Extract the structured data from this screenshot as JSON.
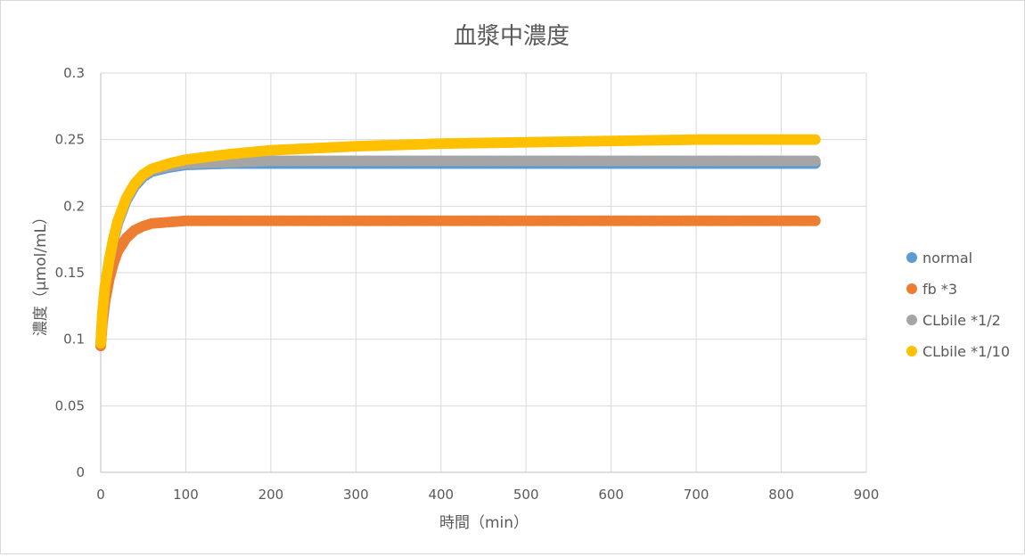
{
  "chart_data": {
    "type": "scatter",
    "title": "血漿中濃度",
    "xlabel": "時間（min）",
    "ylabel": "濃度（μmol/mL）",
    "xlim": [
      0,
      900
    ],
    "ylim": [
      0,
      0.3
    ],
    "x_ticks": [
      "0",
      "100",
      "200",
      "300",
      "400",
      "500",
      "600",
      "700",
      "800",
      "900"
    ],
    "y_ticks": [
      "0",
      "0.05",
      "0.1",
      "0.15",
      "0.2",
      "0.25",
      "0.3"
    ],
    "grid": true,
    "legend_position": "right",
    "series": [
      {
        "name": "normal",
        "color": "#5b9bd5",
        "points": [
          [
            0,
            0.096
          ],
          [
            2,
            0.118
          ],
          [
            5,
            0.138
          ],
          [
            10,
            0.158
          ],
          [
            15,
            0.174
          ],
          [
            20,
            0.187
          ],
          [
            30,
            0.204
          ],
          [
            40,
            0.215
          ],
          [
            50,
            0.222
          ],
          [
            60,
            0.226
          ],
          [
            80,
            0.229
          ],
          [
            100,
            0.231
          ],
          [
            150,
            0.232
          ],
          [
            200,
            0.232
          ],
          [
            300,
            0.232
          ],
          [
            400,
            0.232
          ],
          [
            500,
            0.232
          ],
          [
            600,
            0.232
          ],
          [
            700,
            0.232
          ],
          [
            840,
            0.232
          ]
        ]
      },
      {
        "name": "fb *3",
        "color": "#ed7d31",
        "points": [
          [
            0,
            0.095
          ],
          [
            2,
            0.112
          ],
          [
            5,
            0.128
          ],
          [
            10,
            0.145
          ],
          [
            15,
            0.157
          ],
          [
            20,
            0.166
          ],
          [
            30,
            0.176
          ],
          [
            40,
            0.182
          ],
          [
            50,
            0.185
          ],
          [
            60,
            0.187
          ],
          [
            80,
            0.188
          ],
          [
            100,
            0.189
          ],
          [
            150,
            0.189
          ],
          [
            200,
            0.189
          ],
          [
            300,
            0.189
          ],
          [
            400,
            0.189
          ],
          [
            500,
            0.189
          ],
          [
            600,
            0.189
          ],
          [
            700,
            0.189
          ],
          [
            840,
            0.189
          ]
        ]
      },
      {
        "name": "CLbile *1/2",
        "color": "#a5a5a5",
        "points": [
          [
            0,
            0.097
          ],
          [
            2,
            0.119
          ],
          [
            5,
            0.139
          ],
          [
            10,
            0.159
          ],
          [
            15,
            0.175
          ],
          [
            20,
            0.188
          ],
          [
            30,
            0.205
          ],
          [
            40,
            0.216
          ],
          [
            50,
            0.223
          ],
          [
            60,
            0.227
          ],
          [
            80,
            0.23
          ],
          [
            100,
            0.232
          ],
          [
            150,
            0.233
          ],
          [
            200,
            0.234
          ],
          [
            300,
            0.234
          ],
          [
            400,
            0.234
          ],
          [
            500,
            0.234
          ],
          [
            600,
            0.234
          ],
          [
            700,
            0.234
          ],
          [
            840,
            0.234
          ]
        ]
      },
      {
        "name": "CLbile *1/10",
        "color": "#ffc000",
        "points": [
          [
            0,
            0.097
          ],
          [
            2,
            0.12
          ],
          [
            5,
            0.14
          ],
          [
            10,
            0.16
          ],
          [
            15,
            0.176
          ],
          [
            20,
            0.189
          ],
          [
            30,
            0.206
          ],
          [
            40,
            0.217
          ],
          [
            50,
            0.224
          ],
          [
            60,
            0.228
          ],
          [
            80,
            0.232
          ],
          [
            100,
            0.235
          ],
          [
            150,
            0.239
          ],
          [
            200,
            0.242
          ],
          [
            300,
            0.245
          ],
          [
            400,
            0.247
          ],
          [
            500,
            0.248
          ],
          [
            600,
            0.249
          ],
          [
            700,
            0.25
          ],
          [
            840,
            0.25
          ]
        ]
      }
    ]
  }
}
